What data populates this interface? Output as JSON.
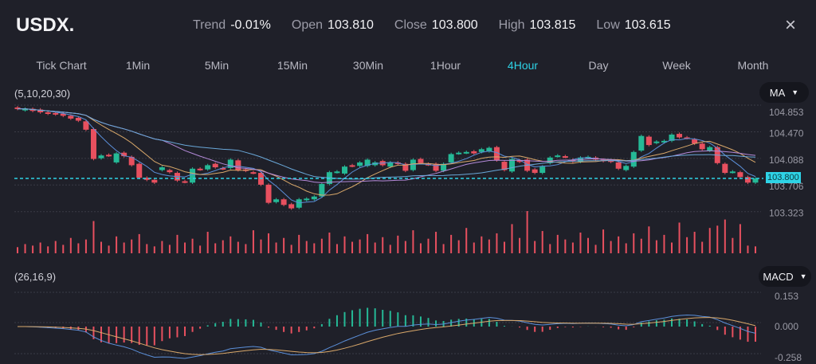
{
  "header": {
    "symbol": "USDX.",
    "stats": [
      {
        "label": "Trend",
        "value": "-0.01%"
      },
      {
        "label": "Open",
        "value": "103.810"
      },
      {
        "label": "Close",
        "value": "103.800"
      },
      {
        "label": "High",
        "value": "103.815"
      },
      {
        "label": "Low",
        "value": "103.615"
      }
    ],
    "close_icon": "×"
  },
  "tabs": [
    {
      "label": "Tick Chart"
    },
    {
      "label": "1Min"
    },
    {
      "label": "5Min"
    },
    {
      "label": "15Min"
    },
    {
      "label": "30Min"
    },
    {
      "label": "1Hour"
    },
    {
      "label": "4Hour",
      "active": true
    },
    {
      "label": "Day"
    },
    {
      "label": "Week"
    },
    {
      "label": "Month"
    }
  ],
  "price_panel": {
    "params": "(5,10,20,30)",
    "indicator": "MA",
    "current_price": "103.800"
  },
  "macd_panel": {
    "params": "(26,16,9)",
    "indicator": "MACD"
  },
  "colors": {
    "up": "#25b996",
    "down": "#e8505f",
    "accent": "#2ed3e6",
    "ma5": "#5b8fd9",
    "ma10": "#d9a86a",
    "ma20": "#b48ad9",
    "ma30": "#6aa8d9"
  },
  "chart_data": [
    {
      "type": "candlestick",
      "y_ticks": [
        "104.853",
        "104.470",
        "104.088",
        "103.706",
        "103.323"
      ],
      "ylim": [
        103.32,
        104.85
      ],
      "candles": [
        [
          104.82,
          104.8
        ],
        [
          104.78,
          104.8
        ],
        [
          104.8,
          104.77
        ],
        [
          104.79,
          104.75
        ],
        [
          104.75,
          104.73
        ],
        [
          104.74,
          104.72
        ],
        [
          104.73,
          104.7
        ],
        [
          104.7,
          104.66
        ],
        [
          104.67,
          104.63
        ],
        [
          104.62,
          104.5
        ],
        [
          104.51,
          104.08
        ],
        [
          104.09,
          104.13
        ],
        [
          104.14,
          104.13
        ],
        [
          104.03,
          104.16
        ],
        [
          104.17,
          104.12
        ],
        [
          104.11,
          103.99
        ],
        [
          104.01,
          103.81
        ],
        [
          103.81,
          103.78
        ],
        [
          103.78,
          103.74
        ],
        [
          103.92,
          103.96
        ],
        [
          103.92,
          103.89
        ],
        [
          103.88,
          103.77
        ],
        [
          103.76,
          103.75
        ],
        [
          103.74,
          103.94
        ],
        [
          103.94,
          103.93
        ],
        [
          103.93,
          103.99
        ],
        [
          104.01,
          103.96
        ],
        [
          103.95,
          103.94
        ],
        [
          103.95,
          104.07
        ],
        [
          104.06,
          103.92
        ],
        [
          103.93,
          103.91
        ],
        [
          103.89,
          103.88
        ],
        [
          103.88,
          103.71
        ],
        [
          103.71,
          103.45
        ],
        [
          103.46,
          103.5
        ],
        [
          103.5,
          103.42
        ],
        [
          103.43,
          103.37
        ],
        [
          103.38,
          103.5
        ],
        [
          103.49,
          103.51
        ],
        [
          103.5,
          103.54
        ],
        [
          103.54,
          103.72
        ],
        [
          103.72,
          103.89
        ],
        [
          103.89,
          103.9
        ],
        [
          103.87,
          103.97
        ],
        [
          103.99,
          103.98
        ],
        [
          103.98,
          104.03
        ],
        [
          103.98,
          104.07
        ],
        [
          103.99,
          104.03
        ],
        [
          104.05,
          103.99
        ],
        [
          103.97,
          104.03
        ],
        [
          104.03,
          104.01
        ],
        [
          104.01,
          103.91
        ],
        [
          103.92,
          104.07
        ],
        [
          104.08,
          104.02
        ],
        [
          104.01,
          104.0
        ],
        [
          104.01,
          103.91
        ],
        [
          103.91,
          104.01
        ],
        [
          104.03,
          104.15
        ],
        [
          104.16,
          104.17
        ],
        [
          104.17,
          104.18
        ],
        [
          104.19,
          104.16
        ],
        [
          104.18,
          104.22
        ],
        [
          104.19,
          104.24
        ],
        [
          104.25,
          104.06
        ],
        [
          104.04,
          103.92
        ],
        [
          103.9,
          104.08
        ],
        [
          104.06,
          104.04
        ],
        [
          104.07,
          103.91
        ],
        [
          103.93,
          103.88
        ],
        [
          103.88,
          103.97
        ],
        [
          104.02,
          104.1
        ],
        [
          104.12,
          104.13
        ],
        [
          104.12,
          104.11
        ],
        [
          104.07,
          104.04
        ],
        [
          104.04,
          104.1
        ],
        [
          104.1,
          104.11
        ],
        [
          104.1,
          104.07
        ],
        [
          104.07,
          104.05
        ],
        [
          104.06,
          104.04
        ],
        [
          104.03,
          103.94
        ],
        [
          103.92,
          103.98
        ],
        [
          103.97,
          104.18
        ],
        [
          104.2,
          104.41
        ],
        [
          104.4,
          104.28
        ],
        [
          104.31,
          104.33
        ],
        [
          104.32,
          104.34
        ],
        [
          104.34,
          104.43
        ],
        [
          104.44,
          104.39
        ],
        [
          104.39,
          104.38
        ],
        [
          104.36,
          104.3
        ],
        [
          104.3,
          104.22
        ],
        [
          104.2,
          104.25
        ],
        [
          104.25,
          104.02
        ],
        [
          104.01,
          103.88
        ],
        [
          103.89,
          103.9
        ],
        [
          103.89,
          103.82
        ],
        [
          103.82,
          103.74
        ],
        [
          103.74,
          103.8
        ]
      ],
      "ma_periods": [
        5,
        10,
        20,
        30
      ]
    },
    {
      "type": "bar",
      "name": "volume",
      "values": [
        8,
        12,
        10,
        14,
        9,
        16,
        11,
        20,
        13,
        18,
        42,
        15,
        10,
        22,
        14,
        18,
        25,
        12,
        9,
        16,
        11,
        24,
        14,
        19,
        10,
        28,
        13,
        17,
        22,
        15,
        12,
        30,
        18,
        26,
        14,
        20,
        11,
        24,
        16,
        13,
        19,
        27,
        12,
        22,
        15,
        18,
        25,
        14,
        21,
        11,
        23,
        16,
        30,
        13,
        19,
        28,
        12,
        24,
        17,
        33,
        14,
        22,
        18,
        26,
        15,
        38,
        20,
        55,
        16,
        29,
        12,
        24,
        18,
        14,
        27,
        20,
        11,
        31,
        16,
        22,
        13,
        26,
        19,
        35,
        17,
        24,
        14,
        40,
        21,
        28,
        15,
        33,
        36,
        44,
        20,
        38,
        10,
        9
      ]
    },
    {
      "type": "macd",
      "params": [
        26,
        16,
        9
      ],
      "y_ticks": [
        "0.153",
        "0.000",
        "-0.258"
      ],
      "ylim": [
        -0.258,
        0.153
      ]
    }
  ]
}
